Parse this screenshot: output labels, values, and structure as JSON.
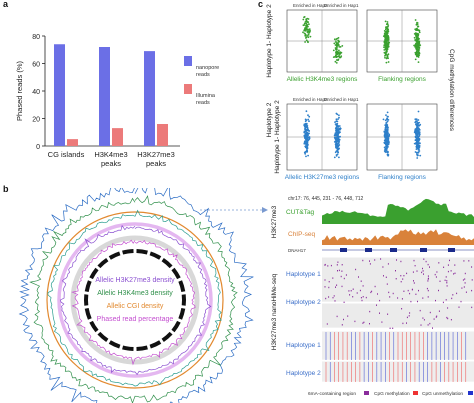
{
  "panels": {
    "a": "a",
    "b": "b",
    "c": "c"
  },
  "chart_data": {
    "type": "bar",
    "categories": [
      "CG islands",
      "H3K4me3 peaks",
      "H3K27me3 peaks"
    ],
    "category_lines": [
      [
        "CG islands"
      ],
      [
        "H3K4me3",
        "peaks"
      ],
      [
        "H3K27me3",
        "peaks"
      ]
    ],
    "series": [
      {
        "name": "nanopore reads",
        "name_lines": [
          "nanopore",
          "reads"
        ],
        "values": [
          74,
          72,
          69
        ],
        "color": "#6b6fe6"
      },
      {
        "name": "Illumina reads",
        "name_lines": [
          "Illumina",
          "reads"
        ],
        "values": [
          5,
          13,
          16
        ],
        "color": "#ec7a7a"
      }
    ],
    "ylabel": "Phased reads (%)",
    "ylim": [
      0,
      80
    ],
    "yticks": [
      0,
      20,
      40,
      60,
      80
    ],
    "legend": "right"
  },
  "panel_c": {
    "row_labels": [
      "Haplotype 1- Haplotype 2",
      "Haplotype 2",
      "Haplotype 1- Haplotype 2"
    ],
    "right_label": "CpG methylation differences",
    "enriched_hap2": "Enriched in Hap2",
    "enriched_hap1": "Enriched in Hap1",
    "subtitles": {
      "top_left": "Allelic H3K4me3 regions",
      "top_right": "Flanking regions",
      "bottom_left": "Allelic H3K27me3 regions",
      "bottom_right": "Flanking regions"
    },
    "colors": {
      "green": "#3aa02f",
      "blue": "#2d7fc9"
    }
  },
  "panel_b_circos": {
    "labels": [
      {
        "text": "Allelic H3K27me3 density",
        "color": "#8a4fd0"
      },
      {
        "text": "Allelic H3K4me3 density",
        "color": "#2f8f4a"
      },
      {
        "text": "Allelic CGI density",
        "color": "#e2892f"
      },
      {
        "text": "Phased read percentage",
        "color": "#c44fd0"
      }
    ]
  },
  "panel_b_tracks": {
    "coordinate": "chr17: 76, 445, 231 - 76, 448, 712",
    "left_group_top": "H3K27me3",
    "left_group_bottom": "H3K27me3 nanoHiMe-seq",
    "cut_tag": "CUT&Tag",
    "chip_seq": "ChIP-seq",
    "gene": "DNAH17",
    "haplotype1": "Haplotype 1",
    "haplotype2": "Haplotype 2",
    "legend": {
      "region": "6mA-containing region",
      "meth": "CpG methylation",
      "unmeth": "CpG unmethylation"
    },
    "colors": {
      "cut": "#3aa02f",
      "chip": "#d9823a",
      "hap": "#3c6fc9",
      "purple": "#8a2c9c",
      "red": "#e33",
      "blue": "#2233cc"
    }
  }
}
